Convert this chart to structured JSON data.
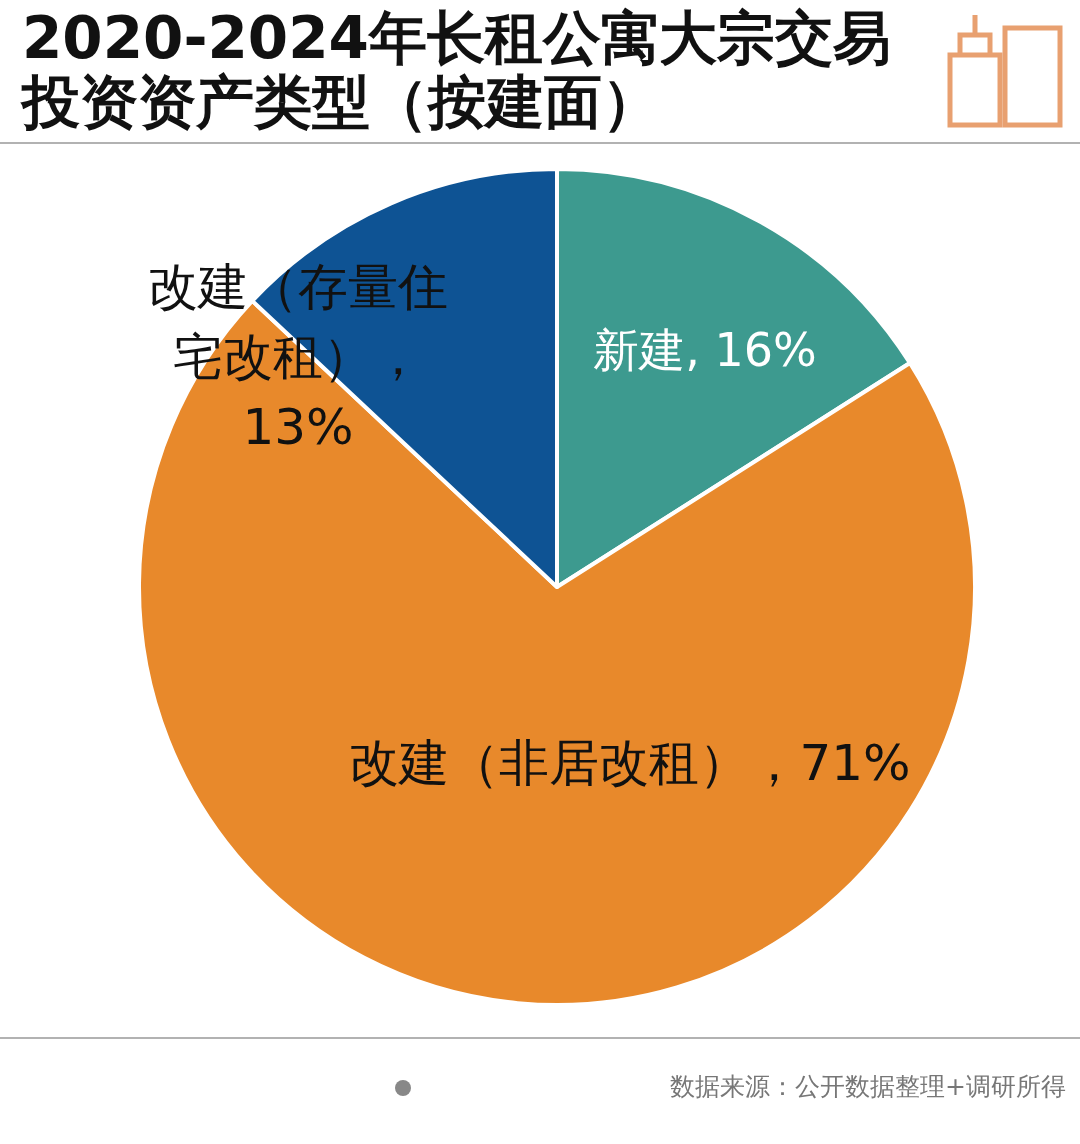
{
  "chart_data": {
    "type": "pie",
    "title": "2020-2024年长租公寓大宗交易投资资产类型（按建面）",
    "categories": [
      "新建",
      "改建（非居改租）",
      "改建（存量住宅改租）"
    ],
    "values": [
      16,
      71,
      13
    ],
    "colors": [
      "#3d9a8f",
      "#e8892b",
      "#0e5394"
    ],
    "value_labels": [
      ", 16%",
      "，71%",
      "，13%"
    ],
    "annotations": [
      "数据来源：公开数据整理+调研所得"
    ]
  }
}
